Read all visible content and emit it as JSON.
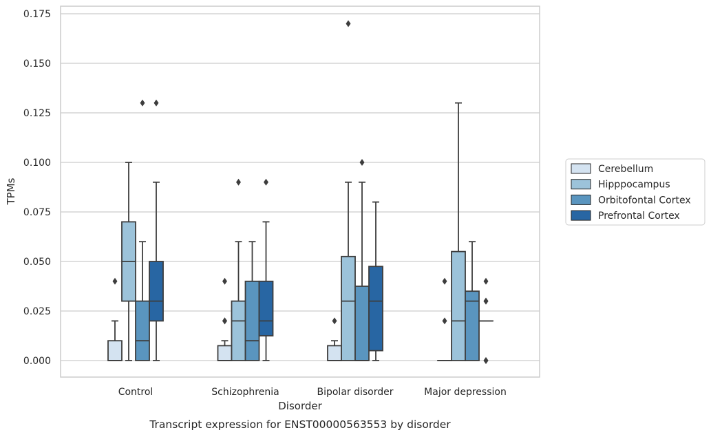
{
  "figure": {
    "caption": "Transcript expression for ENST00000563553 by disorder"
  },
  "chart_data": {
    "type": "box",
    "xlabel": "Disorder",
    "ylabel": "TPMs",
    "categories": [
      "Control",
      "Schizophrenia",
      "Bipolar disorder",
      "Major depression"
    ],
    "ylim": [
      -0.0085,
      0.1785
    ],
    "yticks": [
      "0.000",
      "0.025",
      "0.050",
      "0.075",
      "0.100",
      "0.125",
      "0.150",
      "0.175"
    ],
    "grid": "horizontal",
    "legend_position": "right",
    "series": [
      {
        "name": "Cerebellum",
        "color": "#d4e3f1",
        "boxes": [
          {
            "whislo": 0,
            "q1": 0,
            "med": 0,
            "q3": 0.01,
            "whishi": 0.02,
            "fliers": [
              0.04
            ]
          },
          {
            "whislo": 0,
            "q1": 0,
            "med": 0,
            "q3": 0.0075,
            "whishi": 0.01,
            "fliers": [
              0.02,
              0.02,
              0.04
            ]
          },
          {
            "whislo": 0,
            "q1": 0,
            "med": 0,
            "q3": 0.0075,
            "whishi": 0.01,
            "fliers": [
              0.02
            ]
          },
          {
            "whislo": 0,
            "q1": 0,
            "med": 0,
            "q3": 0,
            "whishi": 0,
            "fliers": [
              0.02,
              0.04
            ]
          }
        ]
      },
      {
        "name": "Hipppocampus",
        "color": "#9cc3da",
        "boxes": [
          {
            "whislo": 0,
            "q1": 0.03,
            "med": 0.05,
            "q3": 0.07,
            "whishi": 0.1,
            "fliers": []
          },
          {
            "whislo": 0,
            "q1": 0,
            "med": 0.02,
            "q3": 0.03,
            "whishi": 0.06,
            "fliers": [
              0.09
            ]
          },
          {
            "whislo": 0,
            "q1": 0,
            "med": 0.03,
            "q3": 0.0525,
            "whishi": 0.09,
            "fliers": [
              0.17
            ]
          },
          {
            "whislo": 0,
            "q1": 0,
            "med": 0.02,
            "q3": 0.055,
            "whishi": 0.13,
            "fliers": []
          }
        ]
      },
      {
        "name": "Orbitofontal Cortex",
        "color": "#5a95bf",
        "boxes": [
          {
            "whislo": 0,
            "q1": 0,
            "med": 0.01,
            "q3": 0.03,
            "whishi": 0.06,
            "fliers": [
              0.13
            ]
          },
          {
            "whislo": 0,
            "q1": 0,
            "med": 0.01,
            "q3": 0.04,
            "whishi": 0.06,
            "fliers": []
          },
          {
            "whislo": 0,
            "q1": 0,
            "med": 0,
            "q3": 0.0375,
            "whishi": 0.09,
            "fliers": [
              0.1
            ]
          },
          {
            "whislo": 0,
            "q1": 0,
            "med": 0.03,
            "q3": 0.035,
            "whishi": 0.06,
            "fliers": []
          }
        ]
      },
      {
        "name": "Prefrontal Cortex",
        "color": "#2866a3",
        "boxes": [
          {
            "whislo": 0,
            "q1": 0.02,
            "med": 0.03,
            "q3": 0.05,
            "whishi": 0.09,
            "fliers": [
              0.13
            ]
          },
          {
            "whislo": 0,
            "q1": 0.0125,
            "med": 0.02,
            "q3": 0.04,
            "whishi": 0.07,
            "fliers": [
              0.09
            ]
          },
          {
            "whislo": 0,
            "q1": 0.005,
            "med": 0.03,
            "q3": 0.0475,
            "whishi": 0.08,
            "fliers": []
          },
          {
            "whislo": 0.02,
            "q1": 0.02,
            "med": 0.02,
            "q3": 0.02,
            "whishi": 0.02,
            "fliers": [
              0,
              0,
              0.03,
              0.03,
              0.04
            ]
          }
        ]
      }
    ]
  }
}
